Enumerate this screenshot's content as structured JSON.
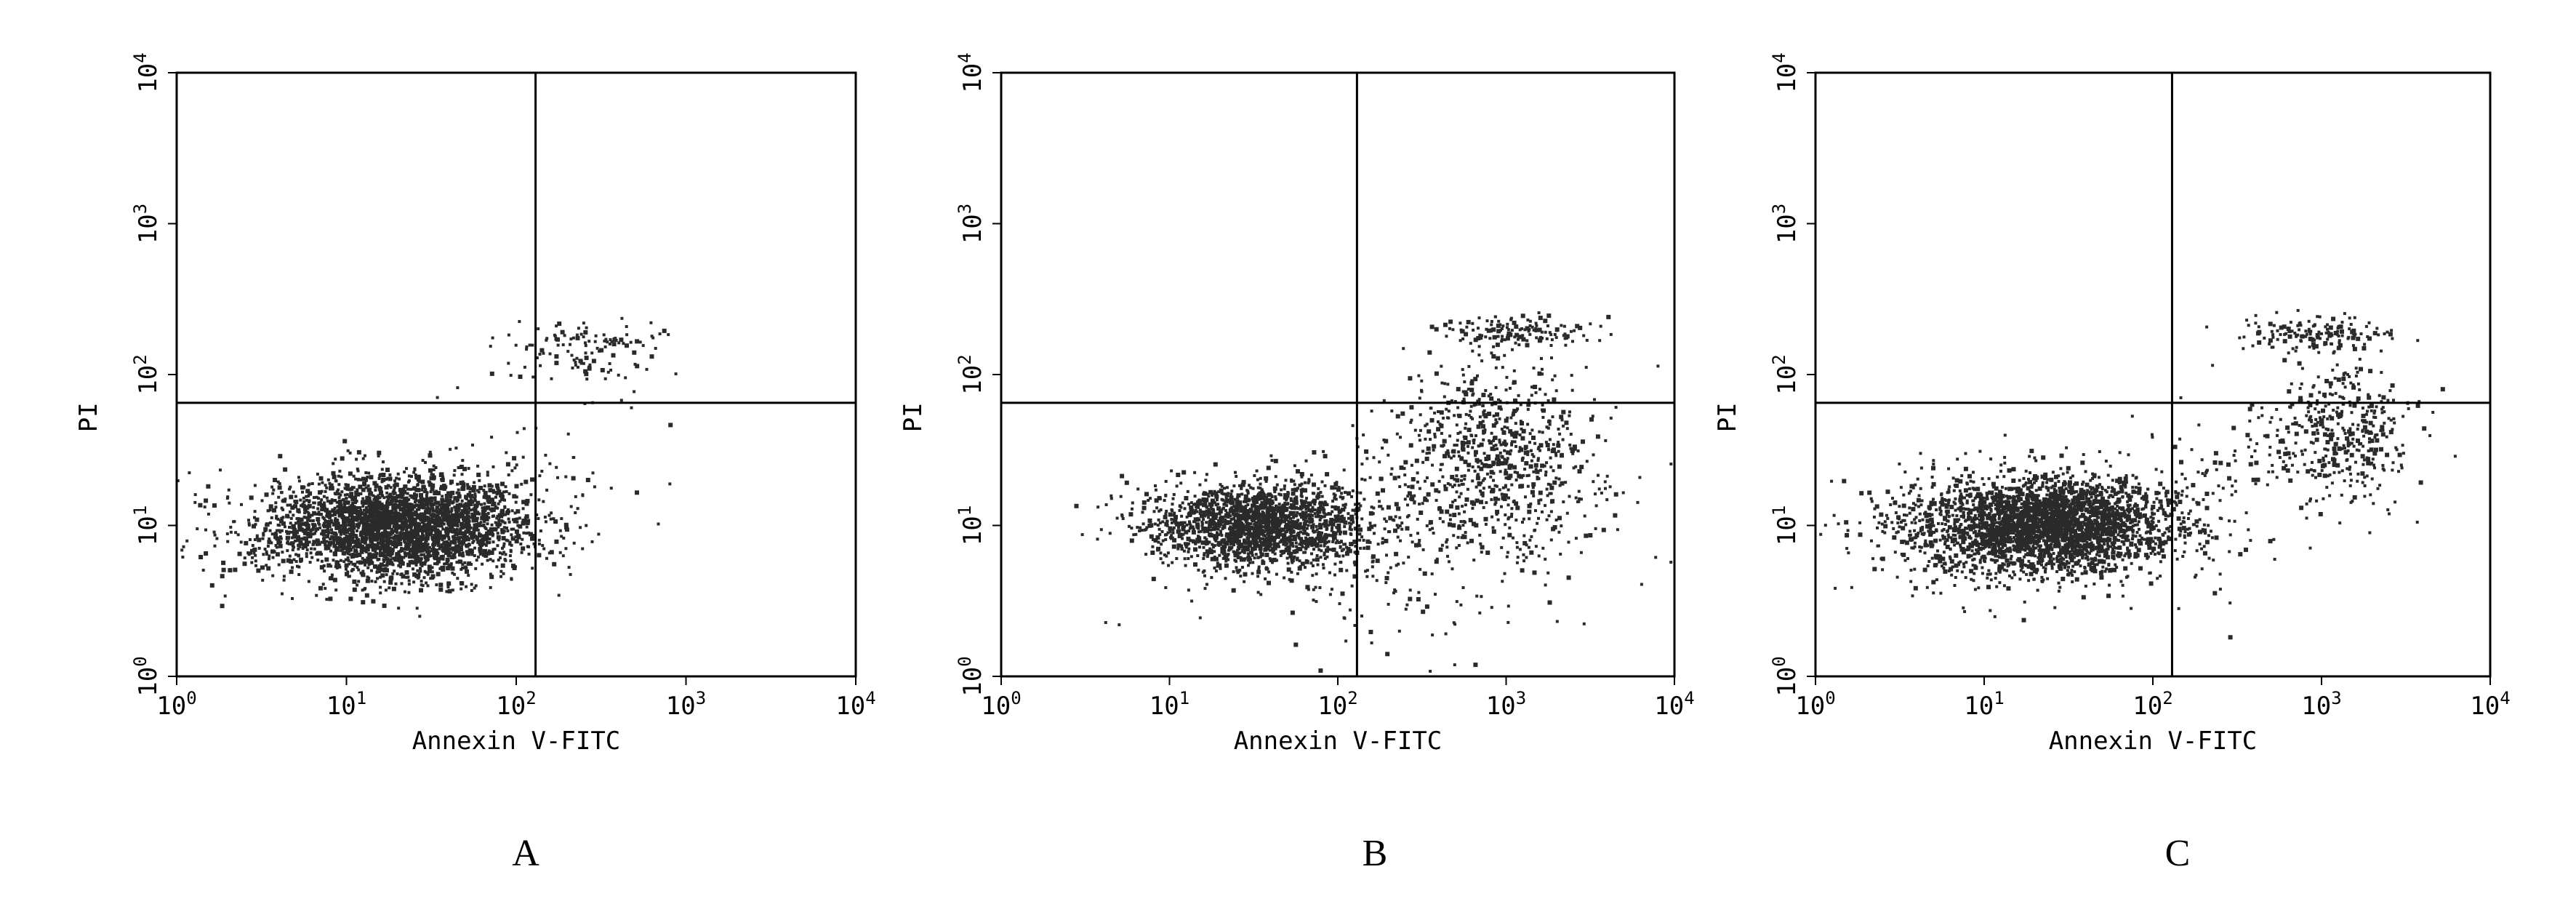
{
  "chart_data": [
    {
      "type": "scatter",
      "panel_label": "A",
      "xlabel": "Annexin V-FITC",
      "ylabel": "PI",
      "x_scale": "log",
      "y_scale": "log",
      "xlim": [
        1,
        10000
      ],
      "ylim": [
        1,
        10000
      ],
      "x_ticks": [
        {
          "base": "10",
          "exp": "0"
        },
        {
          "base": "10",
          "exp": "1"
        },
        {
          "base": "10",
          "exp": "2"
        },
        {
          "base": "10",
          "exp": "3"
        },
        {
          "base": "10",
          "exp": "4"
        }
      ],
      "y_ticks": [
        {
          "base": "10",
          "exp": "0"
        },
        {
          "base": "10",
          "exp": "1"
        },
        {
          "base": "10",
          "exp": "2"
        },
        {
          "base": "10",
          "exp": "3"
        },
        {
          "base": "10",
          "exp": "4"
        }
      ],
      "gate": {
        "x": 130,
        "y": 65
      },
      "point_color": "#2a2a2a",
      "populations": [
        {
          "cx": 22,
          "cy": 10,
          "sx": 0.36,
          "sy": 0.16,
          "n": 2600
        },
        {
          "cx": 12,
          "cy": 9,
          "sx": 0.45,
          "sy": 0.2,
          "n": 600
        },
        {
          "cx": 260,
          "cy": 150,
          "sx": 0.25,
          "sy": 0.1,
          "n": 120
        },
        {
          "cx": 150,
          "cy": 30,
          "sx": 0.35,
          "sy": 0.3,
          "n": 45
        }
      ]
    },
    {
      "type": "scatter",
      "panel_label": "B",
      "xlabel": "Annexin V-FITC",
      "ylabel": "PI",
      "x_scale": "log",
      "y_scale": "log",
      "xlim": [
        1,
        10000
      ],
      "ylim": [
        1,
        10000
      ],
      "x_ticks": [
        {
          "base": "10",
          "exp": "0"
        },
        {
          "base": "10",
          "exp": "1"
        },
        {
          "base": "10",
          "exp": "2"
        },
        {
          "base": "10",
          "exp": "3"
        },
        {
          "base": "10",
          "exp": "4"
        }
      ],
      "y_ticks": [
        {
          "base": "10",
          "exp": "0"
        },
        {
          "base": "10",
          "exp": "1"
        },
        {
          "base": "10",
          "exp": "2"
        },
        {
          "base": "10",
          "exp": "3"
        },
        {
          "base": "10",
          "exp": "4"
        }
      ],
      "gate": {
        "x": 130,
        "y": 65
      },
      "point_color": "#2a2a2a",
      "populations": [
        {
          "cx": 35,
          "cy": 10,
          "sx": 0.32,
          "sy": 0.14,
          "n": 1800
        },
        {
          "cx": 900,
          "cy": 30,
          "sx": 0.3,
          "sy": 0.3,
          "n": 700
        },
        {
          "cx": 1100,
          "cy": 190,
          "sx": 0.22,
          "sy": 0.06,
          "n": 140
        },
        {
          "cx": 250,
          "cy": 8,
          "sx": 0.55,
          "sy": 0.35,
          "n": 300
        }
      ]
    },
    {
      "type": "scatter",
      "panel_label": "C",
      "xlabel": "Annexin V-FITC",
      "ylabel": "PI",
      "x_scale": "log",
      "y_scale": "log",
      "xlim": [
        1,
        10000
      ],
      "ylim": [
        1,
        10000
      ],
      "x_ticks": [
        {
          "base": "10",
          "exp": "0"
        },
        {
          "base": "10",
          "exp": "1"
        },
        {
          "base": "10",
          "exp": "2"
        },
        {
          "base": "10",
          "exp": "3"
        },
        {
          "base": "10",
          "exp": "4"
        }
      ],
      "y_ticks": [
        {
          "base": "10",
          "exp": "0"
        },
        {
          "base": "10",
          "exp": "1"
        },
        {
          "base": "10",
          "exp": "2"
        },
        {
          "base": "10",
          "exp": "3"
        },
        {
          "base": "10",
          "exp": "4"
        }
      ],
      "gate": {
        "x": 130,
        "y": 65
      },
      "point_color": "#2a2a2a",
      "populations": [
        {
          "cx": 25,
          "cy": 10,
          "sx": 0.36,
          "sy": 0.15,
          "n": 2600
        },
        {
          "cx": 11,
          "cy": 9,
          "sx": 0.4,
          "sy": 0.2,
          "n": 500
        },
        {
          "cx": 1300,
          "cy": 40,
          "sx": 0.22,
          "sy": 0.22,
          "n": 380
        },
        {
          "cx": 900,
          "cy": 190,
          "sx": 0.22,
          "sy": 0.06,
          "n": 150
        },
        {
          "cx": 250,
          "cy": 15,
          "sx": 0.4,
          "sy": 0.3,
          "n": 120
        }
      ]
    }
  ]
}
